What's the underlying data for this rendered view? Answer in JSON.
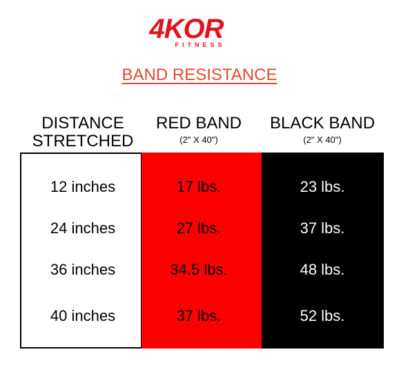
{
  "logo": {
    "brand": "4KOR",
    "tagline": "FITNESS"
  },
  "title": "BAND RESISTANCE",
  "table": {
    "headers": [
      {
        "lines": [
          "DISTANCE",
          "STRETCHED"
        ]
      },
      {
        "lines": [
          "RED BAND"
        ],
        "size": "(2\" X 40\")"
      },
      {
        "lines": [
          "BLACK BAND"
        ],
        "size": "(2\" X 40\")"
      }
    ],
    "rows": [
      [
        "12 inches",
        "17 lbs.",
        "23 lbs."
      ],
      [
        "24 inches",
        "27 lbs.",
        "37 lbs."
      ],
      [
        "36 inches",
        "34.5 lbs.",
        "48 lbs."
      ],
      [
        "40 inches",
        "37 lbs.",
        "52 lbs."
      ]
    ]
  }
}
